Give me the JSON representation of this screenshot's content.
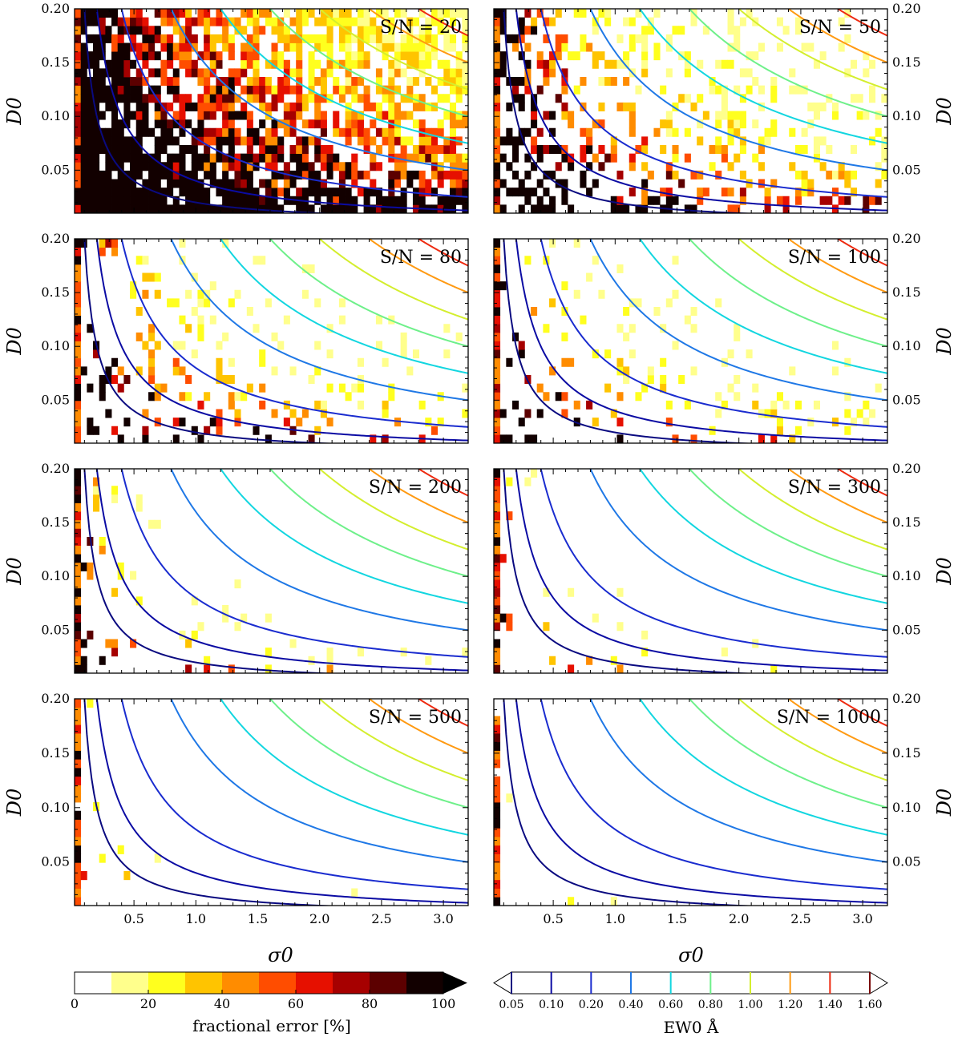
{
  "chart_data": {
    "type": "heatmap",
    "xlabel": "σ0",
    "ylabel": "D0",
    "xlim": [
      0.02,
      3.2
    ],
    "ylim": [
      0.01,
      0.2
    ],
    "xticks": [
      "0.5",
      "1.0",
      "1.5",
      "2.0",
      "2.5",
      "3.0"
    ],
    "xtick_values": [
      0.5,
      1.0,
      1.5,
      2.0,
      2.5,
      3.0
    ],
    "yticks": [
      "0.05",
      "0.10",
      "0.15",
      "0.20"
    ],
    "ytick_values": [
      0.05,
      0.1,
      0.15,
      0.2
    ],
    "panels": [
      {
        "label": "S/N = 20",
        "snr": 20
      },
      {
        "label": "S/N = 50",
        "snr": 50
      },
      {
        "label": "S/N = 80",
        "snr": 80
      },
      {
        "label": "S/N = 100",
        "snr": 100
      },
      {
        "label": "S/N = 200",
        "snr": 200
      },
      {
        "label": "S/N = 300",
        "snr": 300
      },
      {
        "label": "S/N = 500",
        "snr": 500
      },
      {
        "label": "S/N = 1000",
        "snr": 1000
      }
    ],
    "contours": {
      "levels": [
        0.05,
        0.1,
        0.2,
        0.4,
        0.6,
        0.8,
        1.0,
        1.2,
        1.4
      ],
      "colors": [
        "#0a0a80",
        "#0b0ba3",
        "#1a2ccf",
        "#1f78e6",
        "#12d6e0",
        "#6ef08a",
        "#d4ee2e",
        "#ff9a12",
        "#ee2a10"
      ]
    },
    "error_colorbar": {
      "label": "fractional error [%]",
      "ticks": [
        "0",
        "20",
        "40",
        "60",
        "80",
        "100"
      ],
      "tick_values": [
        0,
        20,
        40,
        60,
        80,
        100
      ],
      "bins": [
        0,
        10,
        20,
        30,
        40,
        50,
        60,
        70,
        80,
        90,
        100
      ],
      "colors": [
        "#ffffff",
        "#ffff8c",
        "#ffff1e",
        "#ffc400",
        "#ff8c00",
        "#ff4d00",
        "#e61000",
        "#a60000",
        "#5c0000",
        "#120000"
      ]
    },
    "ew_colorbar": {
      "label": "EW0 Å",
      "ticks": [
        "0.05",
        "0.10",
        "0.20",
        "0.40",
        "0.60",
        "0.80",
        "1.00",
        "1.20",
        "1.40",
        "1.60"
      ],
      "colors": [
        "#0a0a80",
        "#0b0ba3",
        "#1a2ccf",
        "#1f78e6",
        "#12d6e0",
        "#6ef08a",
        "#d4ee2e",
        "#ff9a12",
        "#ee2a10",
        "#7a0a0a"
      ]
    }
  }
}
